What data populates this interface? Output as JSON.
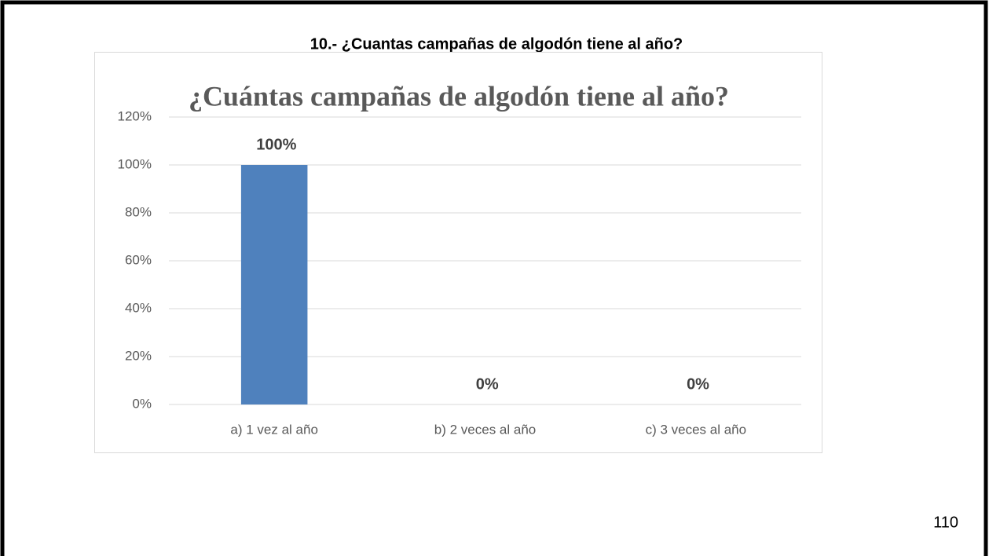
{
  "heading": "10.- ¿Cuantas campañas de algodón tiene al año?",
  "page_number": "110",
  "chart_data": {
    "type": "bar",
    "title": "¿Cuántas campañas de algodón tiene al año?",
    "categories": [
      "a) 1 vez al año",
      "b) 2 veces al año",
      "c) 3 veces al año"
    ],
    "values": [
      100,
      0,
      0
    ],
    "value_labels": [
      "100%",
      "0%",
      "0%"
    ],
    "color": "#4f81bd",
    "ylim": [
      0,
      120
    ],
    "yticks": [
      {
        "value": 0,
        "label": "0%"
      },
      {
        "value": 20,
        "label": "20%"
      },
      {
        "value": 40,
        "label": "40%"
      },
      {
        "value": 60,
        "label": "60%"
      },
      {
        "value": 80,
        "label": "80%"
      },
      {
        "value": 100,
        "label": "100%"
      },
      {
        "value": 120,
        "label": "120%"
      }
    ],
    "grid": true
  }
}
